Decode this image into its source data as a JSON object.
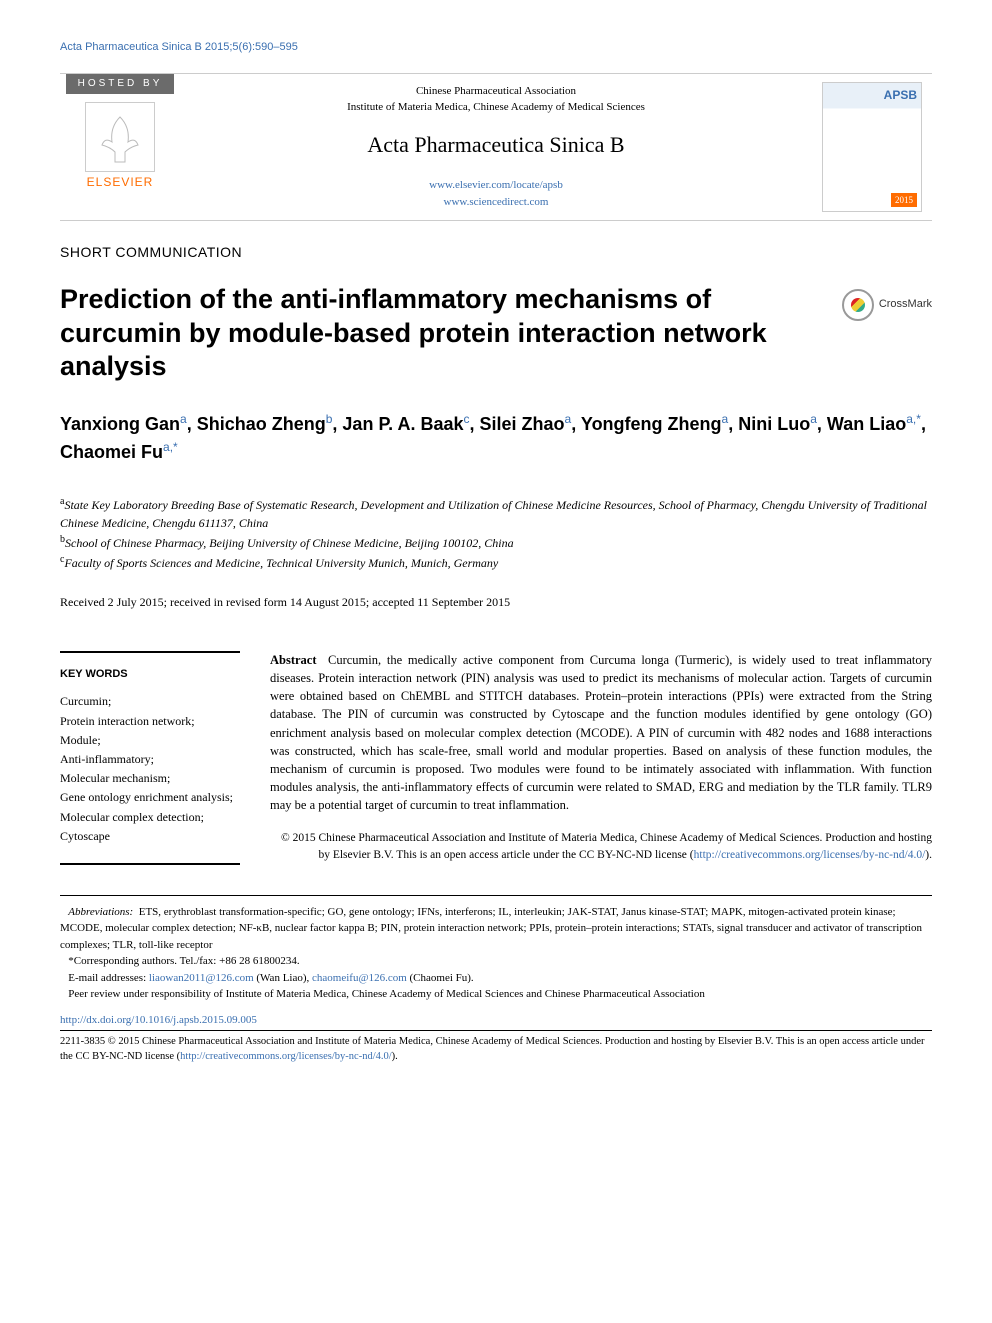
{
  "running_header": "Acta Pharmaceutica Sinica B 2015;5(6):590–595",
  "masthead": {
    "hosted_by": "HOSTED BY",
    "publisher_logo_text": "ELSEVIER",
    "association": "Chinese Pharmaceutical Association",
    "institute": "Institute of Materia Medica, Chinese Academy of Medical Sciences",
    "journal_name": "Acta Pharmaceutica Sinica B",
    "link1": "www.elsevier.com/locate/apsb",
    "link2": "www.sciencedirect.com",
    "cover_label": "APSB",
    "cover_year": "2015"
  },
  "article_type": "SHORT COMMUNICATION",
  "title": "Prediction of the anti-inflammatory mechanisms of curcumin by module-based protein interaction network analysis",
  "crossmark_label": "CrossMark",
  "authors_html": "Yanxiong Gan<sup>a</sup>, Shichao Zheng<sup>b</sup>, Jan P. A. Baak<sup>c</sup>, Silei Zhao<sup>a</sup>, Yongfeng Zheng<sup>a</sup>, Nini Luo<sup>a</sup>, Wan Liao<sup>a,*</sup>, Chaomei Fu<sup>a,*</sup>",
  "affiliations": {
    "a": "State Key Laboratory Breeding Base of Systematic Research, Development and Utilization of Chinese Medicine Resources, School of Pharmacy, Chengdu University of Traditional Chinese Medicine, Chengdu 611137, China",
    "b": "School of Chinese Pharmacy, Beijing University of Chinese Medicine, Beijing 100102, China",
    "c": "Faculty of Sports Sciences and Medicine, Technical University Munich, Munich, Germany"
  },
  "dates": "Received 2 July 2015; received in revised form 14 August 2015; accepted 11 September 2015",
  "keywords": {
    "heading": "KEY WORDS",
    "items": [
      "Curcumin;",
      "Protein interaction network;",
      "Module;",
      "Anti-inflammatory;",
      "Molecular mechanism;",
      "Gene ontology enrichment analysis;",
      "Molecular complex detection;",
      "Cytoscape"
    ]
  },
  "abstract": {
    "label": "Abstract",
    "text": "Curcumin, the medically active component from Curcuma longa (Turmeric), is widely used to treat inflammatory diseases. Protein interaction network (PIN) analysis was used to predict its mechanisms of molecular action. Targets of curcumin were obtained based on ChEMBL and STITCH databases. Protein–protein interactions (PPIs) were extracted from the String database. The PIN of curcumin was constructed by Cytoscape and the function modules identified by gene ontology (GO) enrichment analysis based on molecular complex detection (MCODE). A PIN of curcumin with 482 nodes and 1688 interactions was constructed, which has scale-free, small world and modular properties. Based on analysis of these function modules, the mechanism of curcumin is proposed. Two modules were found to be intimately associated with inflammation. With function modules analysis, the anti-inflammatory effects of curcumin were related to SMAD, ERG and mediation by the TLR family. TLR9 may be a potential target of curcumin to treat inflammation."
  },
  "copyright": {
    "text": "© 2015 Chinese Pharmaceutical Association and Institute of Materia Medica, Chinese Academy of Medical Sciences. Production and hosting by Elsevier B.V. This is an open access article under the CC BY-NC-ND license (",
    "link": "http://creativecommons.org/licenses/by-nc-nd/4.0/",
    "close": ")."
  },
  "footnotes": {
    "abbrev_label": "Abbreviations:",
    "abbreviations": "ETS, erythroblast transformation-specific; GO, gene ontology; IFNs, interferons; IL, interleukin; JAK-STAT, Janus kinase-STAT; MAPK, mitogen-activated protein kinase; MCODE, molecular complex detection; NF-κB, nuclear factor kappa B; PIN, protein interaction network; PPIs, protein–protein interactions; STATs, signal transducer and activator of transcription complexes; TLR, toll-like receptor",
    "corresponding": "*Corresponding authors. Tel./fax: +86 28 61800234.",
    "email_label": "E-mail addresses:",
    "email1": "liaowan2011@126.com",
    "email1_name": "(Wan Liao),",
    "email2": "chaomeifu@126.com",
    "email2_name": "(Chaomei Fu).",
    "peer_review": "Peer review under responsibility of Institute of Materia Medica, Chinese Academy of Medical Sciences and Chinese Pharmaceutical Association"
  },
  "doi": "http://dx.doi.org/10.1016/j.apsb.2015.09.005",
  "issn_block": {
    "text": "2211-3835 © 2015 Chinese Pharmaceutical Association and Institute of Materia Medica, Chinese Academy of Medical Sciences. Production and hosting by Elsevier B.V. This is an open access article under the CC BY-NC-ND license (",
    "link": "http://creativecommons.org/licenses/by-nc-nd/4.0/",
    "close": ")."
  },
  "colors": {
    "link": "#3a6fb0",
    "elsevier_orange": "#ff6c00",
    "hosted_bg": "#6b6b6b"
  }
}
